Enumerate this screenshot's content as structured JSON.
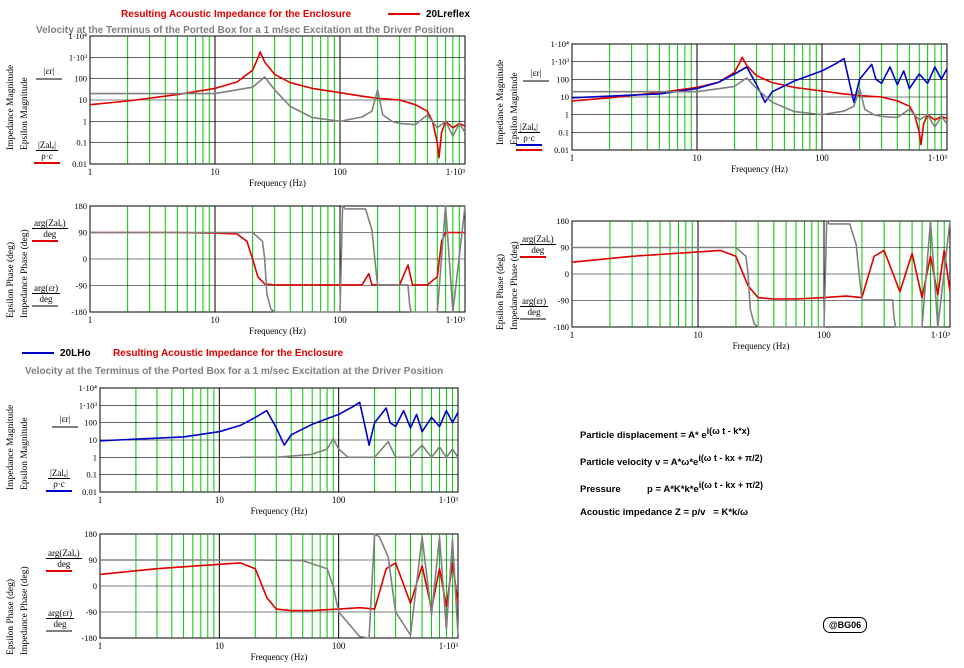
{
  "headers": {
    "top_title": "Resulting Acoustic Impedance for the Enclosure",
    "top_subtitle": "Velocity at the Terminus of the Ported Box for a 1 m/sec Excitation at the Driver Position",
    "top_legend": "20Lreflex",
    "bottom_title": "Resulting Acoustic Impedance for the Enclosure",
    "bottom_subtitle": "Velocity at the Terminus of the Ported Box for a 1 m/sec Excitation at the Driver Position",
    "bottom_legend": "20LHo"
  },
  "colors": {
    "red": "#e00000",
    "blue": "#0000c8",
    "gray": "#808080",
    "grid_green": "#00c800",
    "axis_black": "#000000"
  },
  "labels": {
    "impedance_magnitude": "Impedance Magnitude",
    "epsilon_magnitude": "Epsilon Magnitude",
    "impedance_phase": "Impedance Phase (deg)",
    "epsilon_phase": "Epsilon Phase (deg)",
    "eps_abs": "|εr|",
    "z_abs": "|Zalₑ|",
    "rho_c": "ρ·c",
    "arg_z": "arg(Zalₑ)",
    "arg_eps": "arg(εr)",
    "deg": "deg",
    "frequency": "Frequency (Hz)"
  },
  "equations": {
    "line1": "Particle displacement = A* e",
    "line1_exp": "i(ω t - k*x)",
    "line2": "Particle velocity v = A*ω*e",
    "line2_exp": "i(ω t - kx + π/2)",
    "line3": "Pressure          p = A*K*k*e",
    "line3_exp": "i(ω t - kx + π/2)",
    "line4": "Acoustic impedance Z = p/v   = K*k/ω"
  },
  "signature": "@BG06",
  "chart_data": [
    {
      "id": "top-left-magnitude",
      "type": "line",
      "x_scale": "log",
      "y_scale": "log",
      "xlim": [
        1,
        1000
      ],
      "ylim": [
        0.01,
        10000
      ],
      "x_ticks": [
        "1",
        "10",
        "100",
        "1·10³"
      ],
      "y_ticks": [
        "0.01",
        "0.1",
        "1",
        "10",
        "100",
        "1·10³",
        "1·10⁴"
      ],
      "xlabel": "Frequency (Hz)",
      "series": [
        {
          "color": "red",
          "x": [
            1,
            2,
            5,
            10,
            15,
            20,
            22,
            23,
            25,
            30,
            40,
            60,
            100,
            150,
            200,
            300,
            400,
            500,
            550,
            600,
            620,
            650,
            700,
            800,
            900,
            1000
          ],
          "y": [
            6,
            9,
            18,
            35,
            70,
            250,
            900,
            1800,
            600,
            160,
            65,
            35,
            22,
            15,
            12,
            10,
            6,
            3,
            1,
            0.1,
            0.02,
            0.3,
            1,
            0.5,
            0.8,
            0.6
          ]
        },
        {
          "color": "gray",
          "x": [
            1,
            5,
            10,
            20,
            25,
            30,
            40,
            60,
            100,
            150,
            180,
            200,
            220,
            260,
            300,
            400,
            500,
            600,
            700,
            800,
            900,
            1000
          ],
          "y": [
            20,
            20,
            20,
            40,
            120,
            30,
            5,
            1.5,
            1,
            1.6,
            3,
            30,
            2,
            1,
            0.8,
            0.7,
            2,
            0.5,
            1,
            0.2,
            0.8,
            0.3
          ]
        }
      ]
    },
    {
      "id": "top-left-phase",
      "type": "line",
      "x_scale": "log",
      "xlim": [
        1,
        1000
      ],
      "ylim": [
        -180,
        180
      ],
      "x_ticks": [
        "1",
        "10",
        "100",
        "1·10³"
      ],
      "y_ticks": [
        "-180",
        "-90",
        "0",
        "90",
        "180"
      ],
      "xlabel": "Frequency (Hz)",
      "series": [
        {
          "color": "red",
          "x": [
            1,
            5,
            10,
            15,
            18,
            20,
            22,
            25,
            30,
            50,
            100,
            150,
            170,
            180,
            190,
            200,
            300,
            350,
            380,
            400,
            500,
            600,
            650,
            700,
            800,
            900,
            1000
          ],
          "y": [
            90,
            90,
            88,
            85,
            60,
            0,
            -60,
            -85,
            -88,
            -88,
            -88,
            -88,
            -50,
            -88,
            -88,
            -88,
            -88,
            -20,
            -88,
            -88,
            -88,
            -60,
            60,
            90,
            90,
            90,
            90
          ]
        },
        {
          "color": "gray",
          "x": [
            1,
            5,
            10,
            20,
            24,
            25,
            26,
            28,
            30,
            50,
            100,
            105,
            110,
            130,
            160,
            180,
            190,
            200,
            250,
            300,
            350,
            360,
            370,
            400,
            500,
            600,
            700,
            800,
            1000
          ],
          "y": [
            90,
            90,
            90,
            90,
            60,
            0,
            -120,
            -170,
            -180,
            -180,
            -180,
            180,
            170,
            170,
            170,
            100,
            0,
            -88,
            -88,
            -88,
            -88,
            -150,
            -180,
            -180,
            -180,
            -180,
            180,
            -180,
            180
          ]
        }
      ]
    },
    {
      "id": "top-right-magnitude",
      "type": "line",
      "x_scale": "log",
      "y_scale": "log",
      "xlim": [
        1,
        1000
      ],
      "ylim": [
        0.01,
        10000
      ],
      "x_ticks": [
        "1",
        "10",
        "100",
        "1·10³"
      ],
      "y_ticks": [
        "0.01",
        "0.1",
        "1",
        "10",
        "100",
        "1·10³",
        "1·10⁴"
      ],
      "xlabel": "Frequency (Hz)",
      "series": [
        {
          "color": "red",
          "x": [
            1,
            2,
            5,
            10,
            15,
            20,
            22,
            23,
            25,
            30,
            40,
            60,
            100,
            150,
            200,
            300,
            400,
            500,
            550,
            600,
            620,
            650,
            700,
            800,
            900,
            1000
          ],
          "y": [
            6,
            9,
            18,
            35,
            70,
            250,
            900,
            1800,
            600,
            160,
            65,
            35,
            22,
            15,
            12,
            10,
            6,
            3,
            1,
            0.1,
            0.02,
            0.3,
            1,
            0.5,
            0.8,
            0.6
          ]
        },
        {
          "color": "blue",
          "x": [
            1,
            5,
            10,
            15,
            20,
            25,
            30,
            35,
            40,
            60,
            100,
            130,
            150,
            170,
            180,
            200,
            250,
            270,
            300,
            350,
            400,
            450,
            500,
            600,
            700,
            800,
            900,
            1000
          ],
          "y": [
            9,
            15,
            30,
            70,
            200,
            500,
            50,
            5,
            20,
            80,
            300,
            800,
            1500,
            30,
            5,
            100,
            700,
            100,
            60,
            500,
            50,
            300,
            30,
            200,
            60,
            500,
            100,
            400
          ]
        },
        {
          "color": "gray",
          "x": [
            1,
            5,
            10,
            20,
            25,
            30,
            40,
            60,
            100,
            150,
            180,
            200,
            220,
            260,
            300,
            400,
            500,
            600,
            700,
            800,
            900,
            1000
          ],
          "y": [
            20,
            20,
            20,
            40,
            120,
            30,
            5,
            1.5,
            1,
            1.6,
            3,
            30,
            2,
            1,
            0.8,
            0.7,
            2,
            0.5,
            1,
            0.2,
            0.8,
            0.3
          ]
        }
      ]
    },
    {
      "id": "top-right-phase",
      "type": "line",
      "x_scale": "log",
      "xlim": [
        1,
        1000
      ],
      "ylim": [
        -180,
        180
      ],
      "x_ticks": [
        "1",
        "10",
        "100",
        "1·10³"
      ],
      "y_ticks": [
        "-180",
        "-90",
        "0",
        "90",
        "180"
      ],
      "xlabel": "Frequency (Hz)",
      "series": [
        {
          "color": "red",
          "x": [
            1,
            3,
            10,
            15,
            20,
            25,
            30,
            40,
            60,
            100,
            150,
            200,
            250,
            300,
            400,
            500,
            600,
            700,
            800,
            900,
            1000
          ],
          "y": [
            40,
            60,
            75,
            80,
            60,
            -40,
            -80,
            -85,
            -85,
            -80,
            -75,
            -80,
            60,
            80,
            -60,
            70,
            -80,
            60,
            -70,
            80,
            -60
          ]
        },
        {
          "color": "gray",
          "x": [
            1,
            5,
            10,
            20,
            24,
            25,
            26,
            28,
            30,
            50,
            100,
            105,
            110,
            130,
            160,
            180,
            190,
            200,
            250,
            300,
            350,
            360,
            370,
            400,
            500,
            600,
            700,
            800,
            1000
          ],
          "y": [
            90,
            90,
            90,
            90,
            60,
            0,
            -120,
            -170,
            -180,
            -180,
            -180,
            180,
            170,
            170,
            170,
            100,
            0,
            -88,
            -88,
            -88,
            -88,
            -150,
            -180,
            -180,
            -180,
            -180,
            180,
            -180,
            180
          ]
        }
      ]
    },
    {
      "id": "bottom-left-magnitude",
      "type": "line",
      "x_scale": "log",
      "y_scale": "log",
      "xlim": [
        1,
        1000
      ],
      "ylim": [
        0.01,
        10000
      ],
      "x_ticks": [
        "1",
        "10",
        "100",
        "1·10³"
      ],
      "y_ticks": [
        "0.01",
        "0.1",
        "1",
        "10",
        "100",
        "1·10³",
        "1·10⁴"
      ],
      "xlabel": "Frequency (Hz)",
      "series": [
        {
          "color": "blue",
          "x": [
            1,
            5,
            10,
            15,
            20,
            25,
            30,
            35,
            40,
            60,
            100,
            130,
            150,
            170,
            180,
            200,
            250,
            270,
            300,
            350,
            400,
            450,
            500,
            600,
            700,
            800,
            900,
            1000
          ],
          "y": [
            9,
            15,
            30,
            70,
            200,
            500,
            50,
            5,
            20,
            80,
            300,
            800,
            1500,
            30,
            5,
            100,
            700,
            100,
            60,
            500,
            50,
            300,
            30,
            200,
            60,
            500,
            100,
            400
          ]
        },
        {
          "color": "gray",
          "x": [
            15,
            30,
            60,
            80,
            90,
            100,
            120,
            200,
            260,
            300,
            400,
            500,
            600,
            700,
            800,
            900,
            1000
          ],
          "y": [
            1,
            1,
            1.5,
            3,
            12,
            3,
            1,
            1,
            8,
            1,
            1,
            5,
            1,
            4,
            1,
            3,
            1
          ]
        }
      ]
    },
    {
      "id": "bottom-left-phase",
      "type": "line",
      "x_scale": "log",
      "xlim": [
        1,
        1000
      ],
      "ylim": [
        -180,
        180
      ],
      "x_ticks": [
        "1",
        "10",
        "100",
        "1·10³"
      ],
      "y_ticks": [
        "-180",
        "-90",
        "0",
        "90",
        "180"
      ],
      "xlabel": "Frequency (Hz)",
      "series": [
        {
          "color": "red",
          "x": [
            1,
            3,
            10,
            15,
            20,
            25,
            30,
            40,
            60,
            100,
            150,
            200,
            250,
            300,
            400,
            500,
            600,
            700,
            800,
            900,
            1000
          ],
          "y": [
            40,
            60,
            75,
            80,
            60,
            -40,
            -80,
            -85,
            -85,
            -80,
            -75,
            -80,
            60,
            80,
            -60,
            70,
            -80,
            60,
            -70,
            80,
            -60
          ]
        },
        {
          "color": "gray",
          "x": [
            1,
            5,
            10,
            20,
            50,
            80,
            90,
            100,
            150,
            180,
            200,
            220,
            260,
            300,
            400,
            500,
            600,
            700,
            800,
            900,
            1000
          ],
          "y": [
            90,
            90,
            90,
            90,
            88,
            60,
            0,
            -90,
            -175,
            -180,
            180,
            170,
            100,
            -90,
            -170,
            170,
            -100,
            170,
            -150,
            160,
            -170
          ]
        }
      ]
    }
  ]
}
